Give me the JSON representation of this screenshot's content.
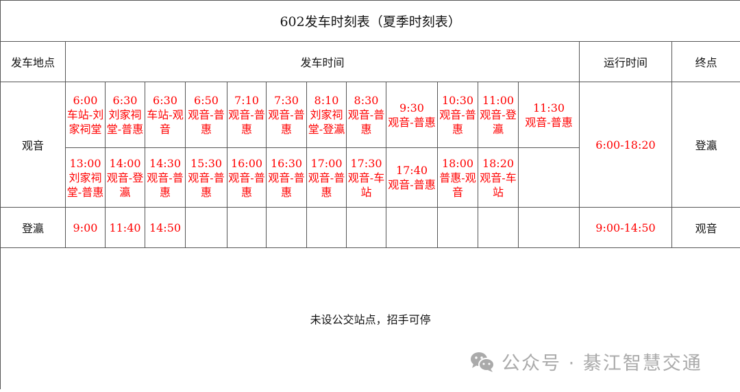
{
  "title": "602发车时刻表（夏季时刻表）",
  "headers": {
    "origin": "发车地点",
    "departure": "发车时间",
    "operating": "运行时间",
    "terminus": "终点"
  },
  "routes": [
    {
      "origin": "观音",
      "rows": [
        [
          [
            "6:00",
            "车站-刘家祠堂"
          ],
          [
            "6:30",
            "刘家祠堂-普惠"
          ],
          [
            "6:30",
            "车站-观音"
          ],
          [
            "6:50",
            "观音-普惠"
          ],
          [
            "7:10",
            "观音-普惠"
          ],
          [
            "7:30",
            "观音-普惠"
          ],
          [
            "8:10",
            "刘家祠堂-登瀛"
          ],
          [
            "8:30",
            "观音-普惠"
          ],
          [
            "9:30",
            "观音-普惠"
          ],
          [
            "10:30",
            "观音-普惠"
          ],
          [
            "11:00",
            "观音-登瀛"
          ],
          [
            "11:30",
            "观音-普惠"
          ]
        ],
        [
          [
            "13:00",
            "刘家祠堂-普惠"
          ],
          [
            "14:00",
            "观音-登瀛"
          ],
          [
            "14:30",
            "观音-普惠"
          ],
          [
            "15:30",
            "观音-普惠"
          ],
          [
            "16:00",
            "观音-普惠"
          ],
          [
            "16:30",
            "观音-普惠"
          ],
          [
            "17:00",
            "观音-普惠"
          ],
          [
            "17:30",
            "观音-车站"
          ],
          [
            "17:40",
            "观音-普惠"
          ],
          [
            "18:00",
            "普惠-观音"
          ],
          [
            "18:20",
            "观音-车站"
          ],
          [
            "",
            ""
          ]
        ]
      ],
      "operating": "6:00-18:20",
      "terminus": "登瀛"
    },
    {
      "origin": "登瀛",
      "rows": [
        [
          [
            "9:00",
            ""
          ],
          [
            "11:40",
            ""
          ],
          [
            "14:50",
            ""
          ],
          [
            "",
            ""
          ],
          [
            "",
            ""
          ],
          [
            "",
            ""
          ],
          [
            "",
            ""
          ],
          [
            "",
            ""
          ],
          [
            "",
            ""
          ],
          [
            "",
            ""
          ],
          [
            "",
            ""
          ],
          [
            "",
            ""
          ]
        ]
      ],
      "operating": "9:00-14:50",
      "terminus": "观音"
    }
  ],
  "note": "未设公交站点，招手可停",
  "watermark": {
    "icon": "wechat-icon",
    "text": "公众号 · 綦江智慧交通"
  },
  "colors": {
    "time_text": "#ff0000",
    "border": "#555555",
    "watermark": "#aaaaaa"
  }
}
